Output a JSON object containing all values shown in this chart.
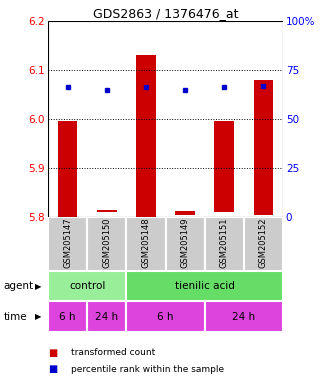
{
  "title": "GDS2863 / 1376476_at",
  "samples": [
    "GSM205147",
    "GSM205150",
    "GSM205148",
    "GSM205149",
    "GSM205151",
    "GSM205152"
  ],
  "bar_bottoms": [
    5.8,
    5.81,
    5.8,
    5.805,
    5.81,
    5.805
  ],
  "bar_tops": [
    5.995,
    5.815,
    6.13,
    5.812,
    5.995,
    6.08
  ],
  "blue_dots_y": [
    6.065,
    6.06,
    6.065,
    6.06,
    6.065,
    6.068
  ],
  "ylim": [
    5.8,
    6.2
  ],
  "yticks_left": [
    5.8,
    5.9,
    6.0,
    6.1,
    6.2
  ],
  "yticks_right": [
    0,
    25,
    50,
    75,
    100
  ],
  "yticks_right_labels": [
    "0",
    "25",
    "50",
    "75",
    "100%"
  ],
  "bar_color": "#cc0000",
  "blue_dot_color": "#0000cc",
  "control_color": "#99ee99",
  "tienilic_color": "#66dd66",
  "time_bg_color": "#dd44dd",
  "sample_bg_color": "#cccccc",
  "legend_red_label": "transformed count",
  "legend_blue_label": "percentile rank within the sample",
  "dotted_lines": [
    5.9,
    6.0,
    6.1
  ]
}
